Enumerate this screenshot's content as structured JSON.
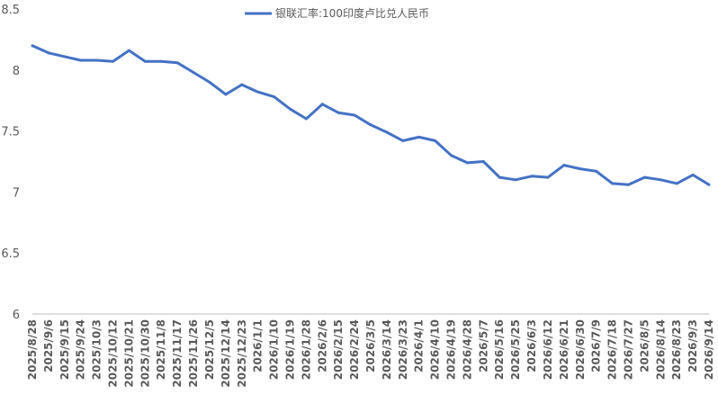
{
  "chart_data": {
    "type": "line",
    "title": "",
    "xlabel": "",
    "ylabel": "",
    "ylim": [
      6,
      8.5
    ],
    "yticks": [
      "8.5",
      "8",
      "7.5",
      "7",
      "6.5",
      "6"
    ],
    "ytick_values": [
      8.5,
      8,
      7.5,
      7,
      6.5,
      6
    ],
    "legend_position": "top",
    "x_tick_labels": [
      "2025/8/28",
      "2025/9/6",
      "2025/9/15",
      "2025/9/24",
      "2025/10/3",
      "2025/10/12",
      "2025/10/21",
      "2025/10/30",
      "2025/11/8",
      "2025/11/17",
      "2025/11/26",
      "2025/12/5",
      "2025/12/14",
      "2025/12/23",
      "2026/1/1",
      "2026/1/10",
      "2026/1/19",
      "2026/1/28",
      "2026/2/6",
      "2026/2/15",
      "2026/2/24",
      "2026/3/5",
      "2026/3/14",
      "2026/3/23",
      "2026/4/1",
      "2026/4/10",
      "2026/4/19",
      "2026/4/28",
      "2026/5/7",
      "2026/5/16",
      "2026/5/25",
      "2026/6/3",
      "2026/6/12",
      "2026/6/21",
      "2026/6/30",
      "2026/7/9",
      "2026/7/18",
      "2026/7/27",
      "2026/8/5",
      "2026/8/14",
      "2026/8/23",
      "2026/9/3",
      "2026/9/14"
    ],
    "series": [
      {
        "name": "银联汇率:100印度卢比兑人民币",
        "color": "#4472c4",
        "x": [
          "2025/8/28",
          "2025/9/6",
          "2025/9/15",
          "2025/9/24",
          "2025/10/3",
          "2025/10/12",
          "2025/10/21",
          "2025/10/30",
          "2025/11/8",
          "2025/11/17",
          "2025/11/26",
          "2025/12/5",
          "2025/12/14",
          "2025/12/23",
          "2026/1/1",
          "2026/1/10",
          "2026/1/19",
          "2026/1/28",
          "2026/2/6",
          "2026/2/15",
          "2026/2/24",
          "2026/3/5",
          "2026/3/14",
          "2026/3/23",
          "2026/4/1",
          "2026/4/10",
          "2026/4/19",
          "2026/4/28",
          "2026/5/7",
          "2026/5/16",
          "2026/5/25",
          "2026/6/3",
          "2026/6/12",
          "2026/6/21",
          "2026/6/30",
          "2026/7/9",
          "2026/7/18",
          "2026/7/27",
          "2026/8/5",
          "2026/8/14",
          "2026/8/23",
          "2026/9/3",
          "2026/9/14"
        ],
        "values": [
          8.2,
          8.14,
          8.11,
          8.08,
          8.08,
          8.07,
          8.16,
          8.07,
          8.07,
          8.06,
          7.98,
          7.9,
          7.8,
          7.88,
          7.82,
          7.78,
          7.68,
          7.6,
          7.72,
          7.65,
          7.63,
          7.55,
          7.49,
          7.42,
          7.45,
          7.42,
          7.3,
          7.24,
          7.25,
          7.12,
          7.1,
          7.13,
          7.12,
          7.22,
          7.19,
          7.17,
          7.07,
          7.06,
          7.12,
          7.1,
          7.07,
          7.14,
          7.06
        ]
      }
    ]
  }
}
